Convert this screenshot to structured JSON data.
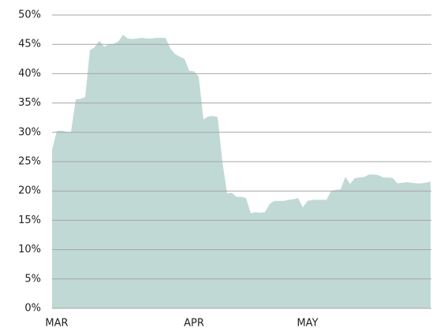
{
  "chart_data": {
    "type": "area",
    "color": "#c0d9d5",
    "grid": true,
    "categories": [
      null,
      "MAR",
      null,
      null,
      null,
      null,
      null,
      null,
      null,
      null,
      null,
      null,
      null,
      null,
      null,
      null,
      null,
      null,
      null,
      null,
      null,
      null,
      null,
      null,
      null,
      null,
      null,
      null,
      null,
      null,
      "APR",
      null,
      null,
      null,
      null,
      null,
      null,
      null,
      null,
      null,
      null,
      null,
      null,
      null,
      null,
      null,
      null,
      null,
      null,
      null,
      null,
      null,
      null,
      null,
      "MAY",
      null,
      null,
      null,
      null,
      null,
      null,
      null,
      null,
      null,
      null,
      null,
      null,
      null,
      null,
      null,
      null,
      null,
      null,
      null,
      null,
      null,
      null,
      null,
      null,
      null,
      null
    ],
    "values": [
      27,
      30.2,
      30.3,
      30.1,
      30,
      35.6,
      35.7,
      36,
      44,
      44.5,
      45.6,
      44.6,
      45,
      45.1,
      45.5,
      46.6,
      46,
      45.9,
      46,
      46.1,
      46,
      46,
      46.1,
      46.1,
      46.1,
      44.3,
      43.3,
      42.9,
      42.5,
      40.5,
      40.4,
      39.5,
      32.2,
      32.7,
      32.8,
      32.6,
      25,
      19.6,
      19.7,
      19,
      19,
      18.8,
      16.2,
      16.4,
      16.3,
      16.4,
      17.8,
      18.3,
      18.3,
      18.3,
      18.5,
      18.6,
      18.8,
      17.2,
      18.3,
      18.5,
      18.5,
      18.5,
      18.5,
      20,
      20.2,
      20.3,
      22.4,
      21.2,
      22.2,
      22.3,
      22.4,
      22.8,
      22.8,
      22.7,
      22.3,
      22.3,
      22.2,
      21.3,
      21.4,
      21.5,
      21.4,
      21.3,
      21.3,
      21.4,
      21.6
    ],
    "ylim": [
      0,
      50
    ],
    "yticks": [
      {
        "value": 0,
        "label": "0%"
      },
      {
        "value": 5,
        "label": "5%"
      },
      {
        "value": 10,
        "label": "10%"
      },
      {
        "value": 15,
        "label": "15%"
      },
      {
        "value": 20,
        "label": "20%"
      },
      {
        "value": 25,
        "label": "25%"
      },
      {
        "value": 30,
        "label": "30%"
      },
      {
        "value": 35,
        "label": "35%"
      },
      {
        "value": 40,
        "label": "40%"
      },
      {
        "value": 45,
        "label": "45%"
      },
      {
        "value": 50,
        "label": "50%"
      }
    ]
  }
}
